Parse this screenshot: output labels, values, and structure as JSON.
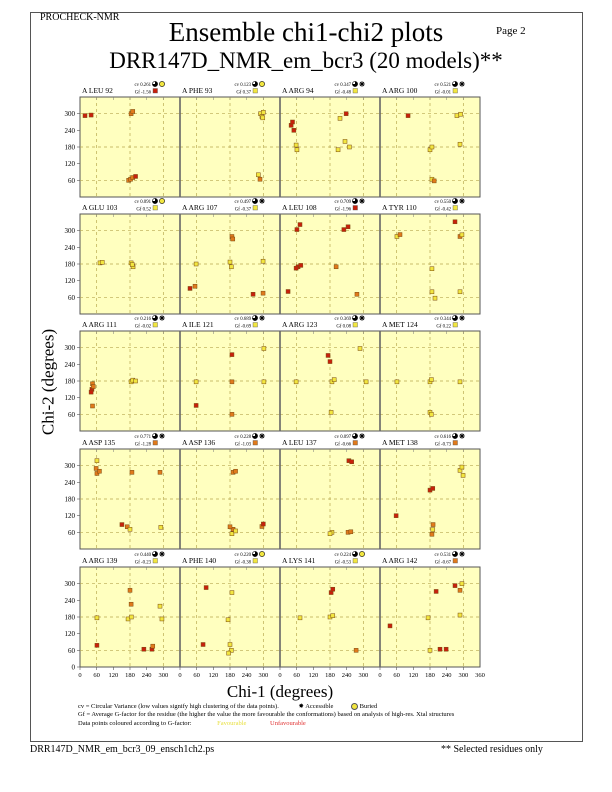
{
  "header": {
    "program": "PROCHECK-NMR",
    "page": "Page  2",
    "title": "Ensemble chi1-chi2 plots",
    "subtitle": "DRR147D_NMR_em_bcr3 (20 models)**"
  },
  "footer": {
    "filename": "DRR147D_NMR_em_bcr3_09_ensch1ch2.ps",
    "note": "** Selected residues only"
  },
  "legend": {
    "cv_text": "cv = Circular Variance (low values signify high clustering of the data points).",
    "accessible": "Accessible",
    "buried": "Buried",
    "gf_text": "Gf = Average G-factor for the residue (the higher the value the more favourable the conformations) based on analysis of high-res. Xtal structures",
    "colour_text": "Data points coloured according to G-factor:",
    "favourable": "Favourable",
    "unfavourable": "Unfavourable"
  },
  "colors": {
    "plot_bg": "#ffffbf",
    "red": "#c8200c",
    "orange": "#e07a1c",
    "yellow": "#f2e640",
    "favourable": "#e8e040",
    "unfavourable": "#e03030"
  },
  "chart_data": {
    "type": "scatter",
    "xlabel": "Chi-1 (degrees)",
    "ylabel": "Chi-2 (degrees)",
    "xlim": [
      0,
      360
    ],
    "ylim": [
      0,
      360
    ],
    "xticks": [
      "0",
      "60",
      "120",
      "180",
      "240",
      "300"
    ],
    "xticks_last": "360",
    "yticks": [
      "0",
      "60",
      "120",
      "180",
      "240",
      "300"
    ],
    "panels": [
      {
        "residue": "A LEU 92",
        "cv": "cv 0.261",
        "gf": "Gf -1.56",
        "gf_color": "red",
        "access": "buried",
        "points": [
          [
            18,
            293,
            "red"
          ],
          [
            40,
            295,
            "red"
          ],
          [
            184,
            300,
            "orange"
          ],
          [
            190,
            308,
            "orange"
          ],
          [
            175,
            60,
            "orange"
          ],
          [
            182,
            64,
            "orange"
          ],
          [
            190,
            70,
            "orange"
          ],
          [
            200,
            74,
            "red"
          ]
        ]
      },
      {
        "residue": "A PHE 93",
        "cv": "cv 0.123",
        "gf": "Gf 0.37",
        "gf_color": "yellow",
        "access": "buried",
        "points": [
          [
            290,
            300,
            "yellow"
          ],
          [
            295,
            290,
            "yellow"
          ],
          [
            298,
            285,
            "yellow"
          ],
          [
            300,
            305,
            "yellow"
          ],
          [
            288,
            64,
            "orange"
          ],
          [
            282,
            80,
            "yellow"
          ]
        ]
      },
      {
        "residue": "A ARG 94",
        "cv": "cv 0.347",
        "gf": "Gf -0.48",
        "gf_color": "yellow",
        "access": "accessible",
        "points": [
          [
            40,
            258,
            "red"
          ],
          [
            45,
            270,
            "red"
          ],
          [
            50,
            240,
            "red"
          ],
          [
            58,
            187,
            "yellow"
          ],
          [
            61,
            170,
            "yellow"
          ],
          [
            209,
            170,
            "yellow"
          ],
          [
            234,
            200,
            "yellow"
          ],
          [
            216,
            283,
            "yellow"
          ],
          [
            238,
            300,
            "red"
          ],
          [
            250,
            180,
            "yellow"
          ]
        ]
      },
      {
        "residue": "A ARG 100",
        "cv": "cv 0.521",
        "gf": "Gf -0.01",
        "gf_color": "yellow",
        "access": "accessible",
        "points": [
          [
            101,
            293,
            "red"
          ],
          [
            180,
            170,
            "yellow"
          ],
          [
            187,
            180,
            "yellow"
          ],
          [
            187,
            64,
            "yellow"
          ],
          [
            195,
            58,
            "orange"
          ],
          [
            277,
            293,
            "yellow"
          ],
          [
            290,
            298,
            "yellow"
          ],
          [
            288,
            190,
            "yellow"
          ]
        ]
      },
      {
        "residue": "A GLU 103",
        "cv": "cv 0.091",
        "gf": "Gf 0.52",
        "gf_color": "yellow",
        "access": "buried",
        "points": [
          [
            72,
            184,
            "yellow"
          ],
          [
            80,
            186,
            "yellow"
          ],
          [
            184,
            184,
            "yellow"
          ],
          [
            191,
            170,
            "yellow"
          ],
          [
            188,
            178,
            "yellow"
          ]
        ]
      },
      {
        "residue": "A ARG 107",
        "cv": "cv 0.497",
        "gf": "Gf -0.37",
        "gf_color": "yellow",
        "access": "accessible",
        "points": [
          [
            36,
            92,
            "red"
          ],
          [
            54,
            100,
            "orange"
          ],
          [
            58,
            180,
            "yellow"
          ],
          [
            180,
            187,
            "yellow"
          ],
          [
            185,
            170,
            "yellow"
          ],
          [
            187,
            279,
            "orange"
          ],
          [
            190,
            270,
            "orange"
          ],
          [
            263,
            71,
            "red"
          ],
          [
            299,
            190,
            "yellow"
          ],
          [
            299,
            75,
            "orange"
          ]
        ]
      },
      {
        "residue": "A LEU 108",
        "cv": "cv 0.709",
        "gf": "Gf -1.96",
        "gf_color": "red",
        "access": "accessible",
        "points": [
          [
            29,
            81,
            "red"
          ],
          [
            61,
            304,
            "red"
          ],
          [
            72,
            322,
            "red"
          ],
          [
            65,
            170,
            "red"
          ],
          [
            75,
            175,
            "red"
          ],
          [
            202,
            170,
            "orange"
          ],
          [
            277,
            71,
            "orange"
          ],
          [
            230,
            304,
            "red"
          ],
          [
            245,
            314,
            "red"
          ],
          [
            58,
            165,
            "red"
          ]
        ]
      },
      {
        "residue": "A TYR 110",
        "cv": "cv 0.550",
        "gf": "Gf -0.42",
        "gf_color": "yellow",
        "access": "accessible",
        "points": [
          [
            61,
            279,
            "yellow"
          ],
          [
            72,
            286,
            "orange"
          ],
          [
            187,
            163,
            "yellow"
          ],
          [
            187,
            80,
            "yellow"
          ],
          [
            198,
            57,
            "yellow"
          ],
          [
            270,
            332,
            "red"
          ],
          [
            288,
            279,
            "orange"
          ],
          [
            295,
            285,
            "yellow"
          ],
          [
            288,
            80,
            "yellow"
          ]
        ]
      },
      {
        "residue": "A ARG 111",
        "cv": "cv 0.216",
        "gf": "Gf -0.02",
        "gf_color": "yellow",
        "access": "accessible",
        "points": [
          [
            45,
            170,
            "orange"
          ],
          [
            43,
            150,
            "red"
          ],
          [
            40,
            140,
            "red"
          ],
          [
            48,
            160,
            "orange"
          ],
          [
            45,
            90,
            "orange"
          ],
          [
            184,
            177,
            "yellow"
          ],
          [
            190,
            183,
            "yellow"
          ],
          [
            200,
            180,
            "yellow"
          ]
        ]
      },
      {
        "residue": "A ILE 121",
        "cv": "cv 0.689",
        "gf": "Gf -0.69",
        "gf_color": "yellow",
        "access": "accessible",
        "points": [
          [
            58,
            177,
            "yellow"
          ],
          [
            58,
            92,
            "red"
          ],
          [
            187,
            275,
            "red"
          ],
          [
            187,
            177,
            "orange"
          ],
          [
            302,
            297,
            "yellow"
          ],
          [
            302,
            177,
            "yellow"
          ],
          [
            187,
            60,
            "orange"
          ]
        ]
      },
      {
        "residue": "A ARG 123",
        "cv": "cv 0.369",
        "gf": "Gf 0.08",
        "gf_color": "yellow",
        "access": "accessible",
        "points": [
          [
            58,
            177,
            "yellow"
          ],
          [
            173,
            272,
            "red"
          ],
          [
            180,
            250,
            "red"
          ],
          [
            187,
            177,
            "yellow"
          ],
          [
            195,
            185,
            "yellow"
          ],
          [
            184,
            67,
            "yellow"
          ],
          [
            288,
            297,
            "yellow"
          ],
          [
            310,
            177,
            "yellow"
          ]
        ]
      },
      {
        "residue": "A MET 124",
        "cv": "cv 0.344",
        "gf": "Gf 0.22",
        "gf_color": "yellow",
        "access": "accessible",
        "points": [
          [
            61,
            177,
            "yellow"
          ],
          [
            180,
            177,
            "yellow"
          ],
          [
            185,
            185,
            "yellow"
          ],
          [
            180,
            67,
            "yellow"
          ],
          [
            185,
            60,
            "yellow"
          ],
          [
            288,
            177,
            "yellow"
          ]
        ]
      },
      {
        "residue": "A ASP 135",
        "cv": "cv 0.771",
        "gf": "Gf -1.28",
        "gf_color": "orange",
        "access": "accessible",
        "points": [
          [
            61,
            318,
            "yellow"
          ],
          [
            61,
            272,
            "orange"
          ],
          [
            58,
            290,
            "orange"
          ],
          [
            70,
            280,
            "orange"
          ],
          [
            187,
            276,
            "orange"
          ],
          [
            151,
            88,
            "red"
          ],
          [
            170,
            80,
            "orange"
          ],
          [
            180,
            71,
            "yellow"
          ],
          [
            288,
            276,
            "orange"
          ],
          [
            291,
            78,
            "yellow"
          ]
        ]
      },
      {
        "residue": "A ASP 136",
        "cv": "cv 0.228",
        "gf": "Gf -1.03",
        "gf_color": "orange",
        "access": "accessible",
        "points": [
          [
            191,
            276,
            "orange"
          ],
          [
            200,
            280,
            "orange"
          ],
          [
            191,
            71,
            "orange"
          ],
          [
            187,
            55,
            "yellow"
          ],
          [
            180,
            80,
            "orange"
          ],
          [
            200,
            65,
            "yellow"
          ],
          [
            295,
            81,
            "orange"
          ],
          [
            300,
            90,
            "red"
          ]
        ]
      },
      {
        "residue": "A LEU 137",
        "cv": "cv 0.097",
        "gf": "Gf -0.66",
        "gf_color": "orange",
        "access": "accessible",
        "points": [
          [
            187,
            60,
            "yellow"
          ],
          [
            180,
            55,
            "yellow"
          ],
          [
            248,
            318,
            "red"
          ],
          [
            258,
            314,
            "red"
          ],
          [
            245,
            60,
            "orange"
          ],
          [
            255,
            62,
            "orange"
          ]
        ]
      },
      {
        "residue": "A MET 138",
        "cv": "cv 0.616",
        "gf": "Gf -0.73",
        "gf_color": "orange",
        "access": "accessible",
        "points": [
          [
            58,
            120,
            "red"
          ],
          [
            180,
            212,
            "red"
          ],
          [
            190,
            218,
            "red"
          ],
          [
            191,
            88,
            "orange"
          ],
          [
            187,
            53,
            "orange"
          ],
          [
            190,
            70,
            "yellow"
          ],
          [
            288,
            283,
            "yellow"
          ],
          [
            299,
            265,
            "yellow"
          ],
          [
            295,
            295,
            "yellow"
          ]
        ]
      },
      {
        "residue": "A ARG 139",
        "cv": "cv 0.440",
        "gf": "Gf -0.23",
        "gf_color": "yellow",
        "access": "accessible",
        "points": [
          [
            61,
            177,
            "yellow"
          ],
          [
            61,
            78,
            "red"
          ],
          [
            180,
            276,
            "orange"
          ],
          [
            184,
            226,
            "orange"
          ],
          [
            173,
            173,
            "yellow"
          ],
          [
            185,
            180,
            "yellow"
          ],
          [
            295,
            173,
            "yellow"
          ],
          [
            288,
            219,
            "yellow"
          ],
          [
            230,
            64,
            "red"
          ],
          [
            259,
            64,
            "red"
          ],
          [
            262,
            75,
            "orange"
          ]
        ]
      },
      {
        "residue": "A PHE 140",
        "cv": "cv 0.220",
        "gf": "Gf -0.38",
        "gf_color": "yellow",
        "access": "buried",
        "points": [
          [
            94,
            286,
            "red"
          ],
          [
            83,
            81,
            "red"
          ],
          [
            173,
            170,
            "yellow"
          ],
          [
            180,
            81,
            "yellow"
          ],
          [
            185,
            60,
            "yellow"
          ],
          [
            175,
            50,
            "yellow"
          ],
          [
            187,
            268,
            "yellow"
          ]
        ]
      },
      {
        "residue": "A LYS 141",
        "cv": "cv 0.224",
        "gf": "Gf -0.53",
        "gf_color": "yellow",
        "access": "buried",
        "points": [
          [
            72,
            177,
            "yellow"
          ],
          [
            184,
            268,
            "red"
          ],
          [
            190,
            280,
            "red"
          ],
          [
            180,
            180,
            "yellow"
          ],
          [
            190,
            185,
            "yellow"
          ],
          [
            274,
            60,
            "orange"
          ]
        ]
      },
      {
        "residue": "A ARG 142",
        "cv": "cv 0.531",
        "gf": "Gf -0.67",
        "gf_color": "orange",
        "access": "accessible",
        "points": [
          [
            36,
            148,
            "red"
          ],
          [
            173,
            177,
            "yellow"
          ],
          [
            180,
            60,
            "yellow"
          ],
          [
            202,
            272,
            "red"
          ],
          [
            216,
            64,
            "red"
          ],
          [
            238,
            64,
            "red"
          ],
          [
            270,
            293,
            "red"
          ],
          [
            288,
            276,
            "orange"
          ],
          [
            295,
            300,
            "yellow"
          ],
          [
            288,
            187,
            "yellow"
          ]
        ]
      }
    ]
  }
}
